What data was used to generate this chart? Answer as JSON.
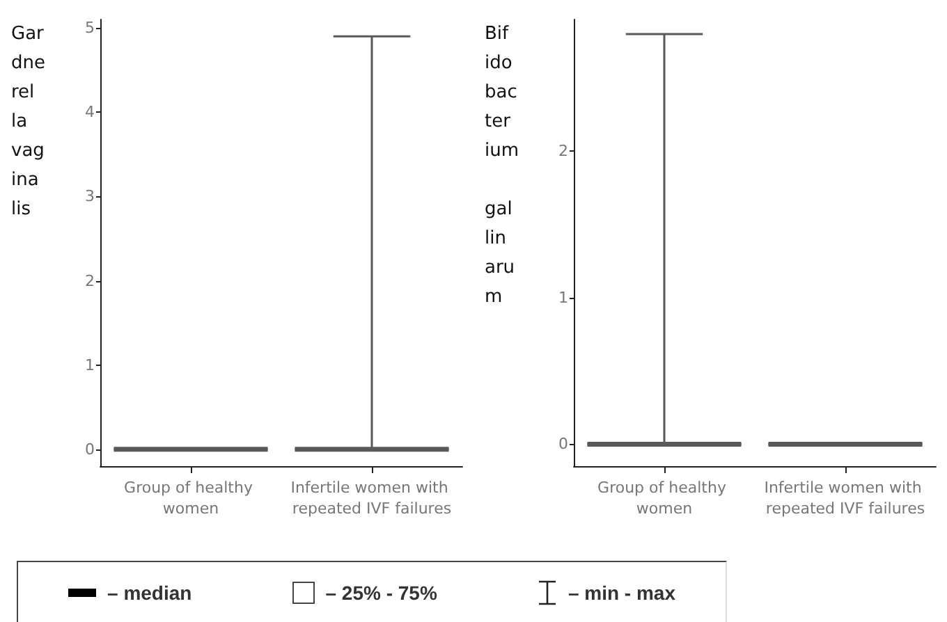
{
  "chart_data": [
    {
      "type": "box",
      "ylabel": "Gardnerella vaginalis",
      "categories": [
        "Group of healthy women",
        "Infertile women with repeated IVF failures"
      ],
      "ylim": [
        -0.2,
        5.1
      ],
      "yticks": [
        0,
        1,
        2,
        3,
        4,
        5
      ],
      "series": [
        {
          "color": "#595959",
          "boxes": [
            {
              "low": 0,
              "q1": 0,
              "median": 0,
              "q3": 0,
              "high": 0
            },
            {
              "low": 0,
              "q1": 0,
              "median": 0,
              "q3": 0,
              "high": 4.9
            }
          ]
        }
      ]
    },
    {
      "type": "box",
      "ylabel": "Bifidobacterium gallinarum",
      "categories": [
        "Group of healthy women",
        "Infertile women with repeated IVF failures"
      ],
      "ylim": [
        -0.15,
        2.9
      ],
      "yticks": [
        0,
        1,
        2
      ],
      "series": [
        {
          "color": "#595959",
          "boxes": [
            {
              "low": 0,
              "q1": 0,
              "median": 0,
              "q3": 0,
              "high": 2.8
            },
            {
              "low": 0,
              "q1": 0,
              "median": 0,
              "q3": 0,
              "high": 0
            }
          ]
        }
      ]
    },
    {
      "type": "other",
      "annotations": [
        "– median",
        "– 25% - 75%",
        "– min - max"
      ]
    }
  ]
}
